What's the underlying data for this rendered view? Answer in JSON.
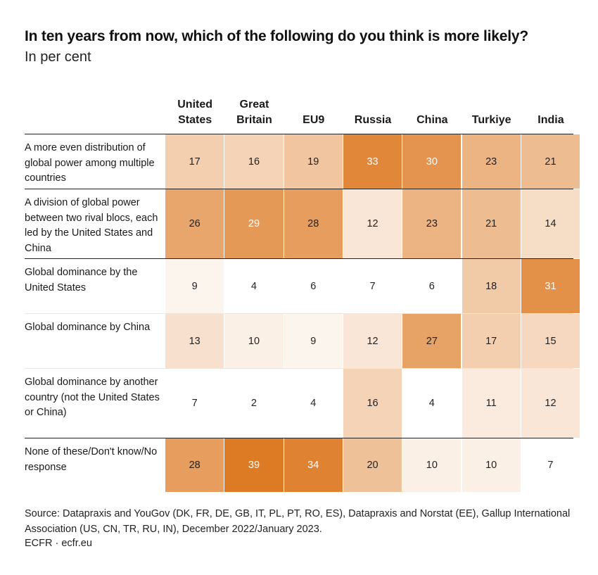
{
  "title": "In ten years from now, which of the following do you think is more likely?",
  "subtitle": "In per cent",
  "source": "Source: Datapraxis and YouGov (DK, FR, DE, GB, IT, PL, PT, RO, ES), Datapraxis and Norstat (EE), Gallup International Association (US, CN, TR, RU, IN), December 2022/January 2023.",
  "brand": "ECFR · ecfr.eu",
  "chart_data": {
    "type": "heatmap",
    "title": "In ten years from now, which of the following do you think is more likely?",
    "subtitle": "In per cent",
    "columns": [
      "United\nStates",
      "Great\nBritain",
      "EU9",
      "Russia",
      "China",
      "Turkiye",
      "India"
    ],
    "rows": [
      {
        "label": "A more even distribution of global power among multiple countries",
        "values": [
          17,
          16,
          19,
          33,
          30,
          23,
          21
        ]
      },
      {
        "label": "A division of global power between two rival blocs, each led by the United States and China",
        "values": [
          26,
          29,
          28,
          12,
          23,
          21,
          14
        ]
      },
      {
        "label": "Global dominance by the United States",
        "values": [
          9,
          4,
          6,
          7,
          6,
          18,
          31
        ]
      },
      {
        "label": "Global dominance by China",
        "values": [
          13,
          10,
          9,
          12,
          27,
          17,
          15
        ]
      },
      {
        "label": "Global dominance by another country (not the United States or China)",
        "values": [
          7,
          2,
          4,
          16,
          4,
          11,
          12
        ]
      },
      {
        "label": "None of these/Don't know/No response",
        "values": [
          28,
          39,
          34,
          20,
          10,
          10,
          7
        ]
      }
    ],
    "color_scale": {
      "low": "#ffffff",
      "high": "#dd7a24"
    },
    "text_color_dark": "#222222",
    "text_color_light": "#ffffff"
  }
}
